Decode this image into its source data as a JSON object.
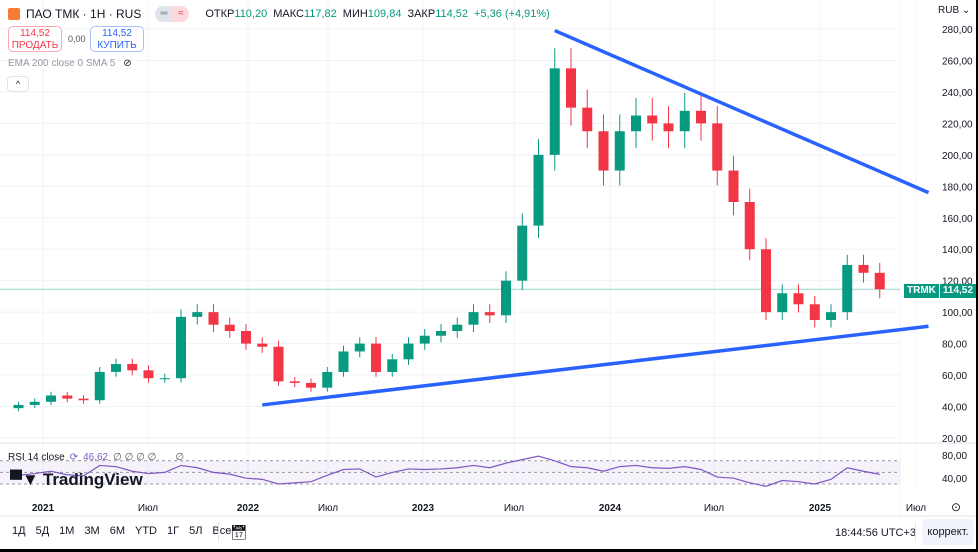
{
  "header": {
    "title": "ПАО ТМК · 1Н · RUS",
    "open_label": "ОТКР",
    "open": "110,20",
    "high_label": "МАКС",
    "high": "117,82",
    "low_label": "МИН",
    "low": "109,84",
    "close_label": "ЗАКР",
    "close": "114,52",
    "change": "+5,36 (+4,91%)",
    "pill_left": "═",
    "pill_right": "≈"
  },
  "trade": {
    "sell_price": "114,52",
    "sell_label": "ПРОДАТЬ",
    "spread": "0,00",
    "buy_price": "114,52",
    "buy_label": "КУПИТЬ"
  },
  "indicators": {
    "label": "EMA 200 close 0 SMA 5",
    "collapse": "^"
  },
  "currency": "RUB ⌄",
  "price_tag": {
    "symbol": "TRMK",
    "price": "114,52"
  },
  "rsi": {
    "label": "RSI 14 close",
    "value": "46,62",
    "extra": "∅ ∅ ∅ ∅",
    "extra2": "∅"
  },
  "brand": "TradingView",
  "toolbar": {
    "ranges": [
      "1Д",
      "5Д",
      "1М",
      "3М",
      "6М",
      "YTD",
      "1Г",
      "5Л",
      "Все"
    ],
    "time": "18:44:56 UTC+3",
    "adjust": "коррект."
  },
  "colors": {
    "up": "#089981",
    "down": "#f23645",
    "trendline": "#2962ff",
    "rsi": "#7e57c2"
  },
  "chart_data": {
    "type": "candlestick",
    "y_ticks": [
      "280,00",
      "260,00",
      "240,00",
      "220,00",
      "200,00",
      "180,00",
      "160,00",
      "140,00",
      "120,00",
      "100,00",
      "80,00",
      "60,00",
      "40,00",
      "20,00"
    ],
    "ylim": [
      20,
      280
    ],
    "x_ticks": [
      "2021",
      "Июл",
      "2022",
      "Июл",
      "2023",
      "Июл",
      "2024",
      "Июл",
      "2025",
      "Июл"
    ],
    "months": [
      "2020-11",
      "2020-12",
      "2021-01",
      "2021-02",
      "2021-03",
      "2021-04",
      "2021-05",
      "2021-06",
      "2021-07",
      "2021-08",
      "2021-09",
      "2021-10",
      "2021-11",
      "2021-12",
      "2022-01",
      "2022-02",
      "2022-03",
      "2022-04",
      "2022-05",
      "2022-06",
      "2022-07",
      "2022-08",
      "2022-09",
      "2022-10",
      "2022-11",
      "2022-12",
      "2023-01",
      "2023-02",
      "2023-03",
      "2023-04",
      "2023-05",
      "2023-06",
      "2023-07",
      "2023-08",
      "2023-09",
      "2023-10",
      "2023-11",
      "2023-12",
      "2024-01",
      "2024-02",
      "2024-03",
      "2024-04",
      "2024-05",
      "2024-06",
      "2024-07",
      "2024-08",
      "2024-09",
      "2024-10",
      "2024-11",
      "2024-12",
      "2025-01",
      "2025-02",
      "2025-03",
      "2025-04"
    ],
    "close": [
      41,
      43,
      47,
      45,
      44,
      62,
      67,
      63,
      58,
      58,
      97,
      100,
      92,
      88,
      80,
      78,
      56,
      55,
      52,
      62,
      75,
      80,
      62,
      70,
      80,
      85,
      88,
      92,
      100,
      98,
      120,
      155,
      200,
      255,
      230,
      215,
      190,
      215,
      225,
      220,
      215,
      228,
      220,
      190,
      170,
      140,
      100,
      112,
      105,
      95,
      100,
      130,
      125,
      114.52
    ],
    "rsi_y_ticks": [
      "80,00",
      "40,00"
    ],
    "rsi": [
      45,
      48,
      52,
      46,
      44,
      62,
      60,
      52,
      48,
      50,
      62,
      58,
      50,
      47,
      40,
      38,
      30,
      32,
      34,
      45,
      55,
      56,
      42,
      50,
      56,
      55,
      56,
      58,
      62,
      58,
      66,
      72,
      78,
      70,
      60,
      58,
      52,
      60,
      62,
      58,
      57,
      60,
      55,
      42,
      40,
      32,
      26,
      36,
      34,
      30,
      38,
      58,
      52,
      46.62
    ],
    "trendlines": [
      {
        "from": [
          "2023-08",
          279
        ],
        "to": [
          "2025-07",
          176
        ]
      },
      {
        "from": [
          "2022-02",
          41
        ],
        "to": [
          "2025-07",
          91
        ]
      }
    ]
  }
}
